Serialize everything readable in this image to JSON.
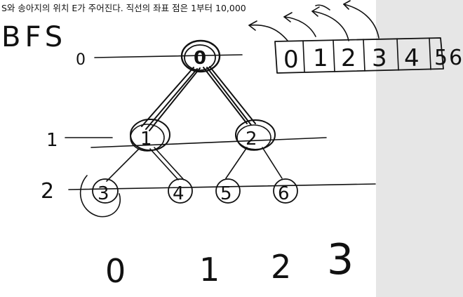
{
  "header": {
    "problem_text": "S와 송아지의 위치 E가 주어진다. 직선의 좌표 점은 1부터 10,000"
  },
  "board": {
    "title": "BFS",
    "level_labels": [
      "0",
      "1",
      "2"
    ],
    "tree_nodes": [
      "0",
      "1",
      "2",
      "3",
      "4",
      "5",
      "6"
    ],
    "array_cells": [
      "0",
      "1",
      "2",
      "3",
      "4",
      "5"
    ],
    "array_trailing_mark": "6",
    "bottom_numbers": [
      "0",
      "1",
      "2",
      "3"
    ]
  },
  "colors": {
    "ink": "#111111",
    "panel": "#e6e6e6",
    "background": "#ffffff"
  }
}
